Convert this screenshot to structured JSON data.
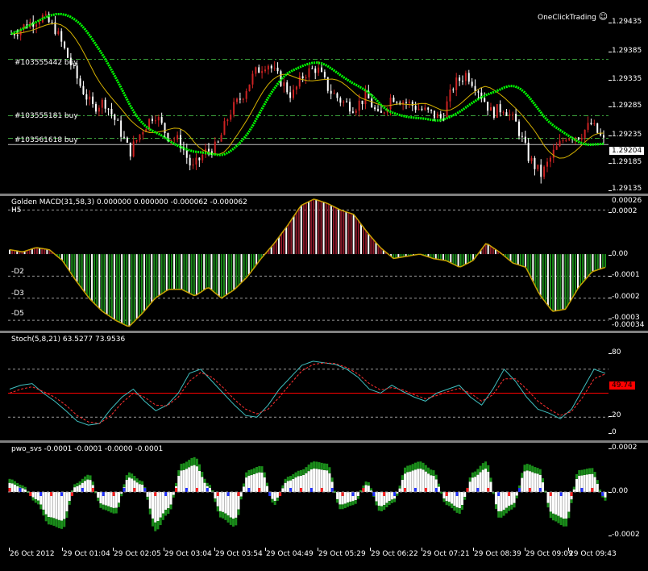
{
  "header": {
    "one_click_label": "OneClickTrading",
    "smile": "☺"
  },
  "colors": {
    "bg": "#000000",
    "bull": "#cc2222",
    "bear": "#ffffff",
    "ma_green": "#00ff00",
    "ma_gold": "#d4b000",
    "macd_red": "#8b1a2a",
    "macd_green": "#1a8c1a",
    "stoch_main": "#3fbfbf",
    "stoch_signal": "#ff3030",
    "pwo_green": "#1a8c1a",
    "pwo_white": "#ffffff",
    "pwo_red": "#ff2020",
    "pwo_blue": "#2030ff",
    "level_red": "#ff0000"
  },
  "order_lines": [
    {
      "label": "#103555442 buy",
      "price": 1.29355
    },
    {
      "label": "#103555181 buy",
      "price": 1.29255
    },
    {
      "label": "#103561618 buy",
      "price": 1.29215
    }
  ],
  "price_axis": {
    "ticks": [
      "1.29435",
      "1.29385",
      "1.29335",
      "1.29285",
      "1.29235",
      "1.29204",
      "1.29185",
      "1.29135"
    ],
    "current": "1.29204"
  },
  "macd": {
    "title": "Golden MACD(31,58,3) 0.000000 0.000000 -0.000062 -0.000062",
    "levels_left": [
      "H5",
      "-D2",
      "-D3",
      "-D5"
    ],
    "axis": [
      "0.00026",
      "0.0002",
      "0.00",
      "-0.0001",
      "-0.0002",
      "-0.0003",
      "-0.00034"
    ]
  },
  "stoch": {
    "title": "Stoch(5,8,21) 63.5277 73.9536",
    "axis": [
      "80",
      "20",
      "0"
    ],
    "current_tag": "49.74",
    "ylim": [
      0,
      100
    ]
  },
  "pwo": {
    "title": "pwo_svs -0.0001 -0.0001 -0.0000 -0.0001",
    "axis": [
      "0.0002",
      "0.00",
      "-0.0002"
    ]
  },
  "time_axis": [
    "26 Oct 2012",
    "29 Oct 01:04",
    "29 Oct 02:05",
    "29 Oct 03:04",
    "29 Oct 03:54",
    "29 Oct 04:49",
    "29 Oct 05:29",
    "29 Oct 06:22",
    "29 Oct 07:21",
    "29 Oct 08:39",
    "29 Oct 09:09",
    "29 Oct 09:43"
  ],
  "chart_data": [
    {
      "type": "candlestick",
      "title": "",
      "x_ticks": [
        "26 Oct 2012",
        "29 Oct 01:04",
        "29 Oct 02:05",
        "29 Oct 03:04",
        "29 Oct 03:54",
        "29 Oct 04:49",
        "29 Oct 05:29",
        "29 Oct 06:22",
        "29 Oct 07:21",
        "29 Oct 08:39",
        "29 Oct 09:09",
        "29 Oct 09:43"
      ],
      "ylim": [
        1.2912,
        1.2945
      ],
      "close_path": [
        [
          0,
          1.294
        ],
        [
          3,
          1.2942
        ],
        [
          5,
          1.2943
        ],
        [
          7,
          1.2941
        ],
        [
          9,
          1.2936
        ],
        [
          11,
          1.2931
        ],
        [
          13,
          1.2927
        ],
        [
          15,
          1.2928
        ],
        [
          17,
          1.2924
        ],
        [
          19,
          1.2919
        ],
        [
          21,
          1.2923
        ],
        [
          23,
          1.2926
        ],
        [
          25,
          1.2922
        ],
        [
          27,
          1.2921
        ],
        [
          29,
          1.2916
        ],
        [
          31,
          1.2919
        ],
        [
          33,
          1.292
        ],
        [
          35,
          1.2926
        ],
        [
          37,
          1.2929
        ],
        [
          39,
          1.2933
        ],
        [
          41,
          1.2935
        ],
        [
          43,
          1.2932
        ],
        [
          45,
          1.2929
        ],
        [
          47,
          1.2933
        ],
        [
          49,
          1.2934
        ],
        [
          51,
          1.293
        ],
        [
          53,
          1.2928
        ],
        [
          55,
          1.2927
        ],
        [
          57,
          1.2929
        ],
        [
          59,
          1.2925
        ],
        [
          61,
          1.2929
        ],
        [
          63,
          1.2928
        ],
        [
          65,
          1.2927
        ],
        [
          67,
          1.2926
        ],
        [
          69,
          1.2925
        ],
        [
          71,
          1.2931
        ],
        [
          73,
          1.2933
        ],
        [
          75,
          1.293
        ],
        [
          77,
          1.2926
        ],
        [
          79,
          1.2927
        ],
        [
          81,
          1.2924
        ],
        [
          83,
          1.2918
        ],
        [
          85,
          1.2915
        ],
        [
          87,
          1.2919
        ],
        [
          89,
          1.2922
        ],
        [
          91,
          1.2922
        ],
        [
          93,
          1.2924
        ],
        [
          95,
          1.2921
        ]
      ],
      "series": [
        {
          "name": "",
          "color": "#00ff00"
        },
        {
          "name": "",
          "color": "#d4b000"
        }
      ]
    },
    {
      "type": "bar",
      "title": "Golden MACD(31,58,3) 0.000000 0.000000 -0.000062 -0.000062",
      "ylim": [
        -0.00034,
        0.00026
      ],
      "values": [
        2e-05,
        1e-05,
        3e-05,
        2e-05,
        -3e-05,
        -0.00012,
        -0.0002,
        -0.00026,
        -0.0003,
        -0.00033,
        -0.00027,
        -0.0002,
        -0.00016,
        -0.00016,
        -0.00019,
        -0.00015,
        -0.0002,
        -0.00016,
        -0.0001,
        -2e-05,
        5e-05,
        0.00013,
        0.00022,
        0.00025,
        0.00023,
        0.0002,
        0.00018,
        0.0001,
        3e-05,
        -2e-05,
        -1e-05,
        0.0,
        -2e-05,
        -3e-05,
        -6e-05,
        -3e-05,
        5e-05,
        1e-05,
        -4e-05,
        -6e-05,
        -0.00018,
        -0.00026,
        -0.00025,
        -0.00015,
        -8e-05,
        -6e-05
      ]
    },
    {
      "type": "line",
      "title": "Stoch(5,8,21) 63.5277 73.9536",
      "ylim": [
        0,
        100
      ],
      "series": [
        {
          "name": "",
          "values": [
            55,
            60,
            62,
            50,
            40,
            28,
            15,
            10,
            12,
            30,
            45,
            55,
            40,
            28,
            35,
            50,
            75,
            80,
            65,
            50,
            35,
            22,
            20,
            35,
            55,
            70,
            85,
            90,
            88,
            86,
            80,
            70,
            55,
            50,
            60,
            52,
            45,
            40,
            50,
            55,
            60,
            45,
            35,
            55,
            80,
            65,
            45,
            30,
            25,
            18,
            30,
            55,
            80,
            75
          ]
        },
        {
          "name": "",
          "values": [
            50,
            55,
            58,
            52,
            45,
            35,
            22,
            14,
            12,
            22,
            38,
            50,
            45,
            35,
            34,
            45,
            65,
            76,
            70,
            57,
            42,
            30,
            24,
            30,
            45,
            62,
            78,
            86,
            88,
            87,
            82,
            74,
            62,
            54,
            57,
            54,
            48,
            43,
            47,
            52,
            56,
            50,
            40,
            48,
            68,
            68,
            55,
            40,
            30,
            22,
            27,
            45,
            68,
            74
          ]
        }
      ]
    },
    {
      "type": "bar",
      "title": "pwo_svs -0.0001 -0.0001 -0.0000 -0.0001",
      "ylim": [
        -0.0002,
        0.0002
      ],
      "values": [
        6e-05,
        3e-05,
        -5e-05,
        -0.00015,
        -0.00017,
        4e-05,
        8e-05,
        -8e-05,
        -0.0001,
        9e-05,
        5e-05,
        -0.00018,
        -0.0001,
        0.00013,
        0.00016,
        4e-05,
        -0.00012,
        -0.00016,
        0.0001,
        0.00012,
        -6e-05,
        7e-05,
        0.0001,
        0.00014,
        0.00013,
        -8e-05,
        -6e-05,
        5e-05,
        -9e-05,
        -5e-05,
        0.00012,
        0.00014,
        0.0001,
        -6e-05,
        -0.0001,
        9e-05,
        0.00014,
        -0.00012,
        -8e-05,
        0.00013,
        0.00011,
        -0.00013,
        -0.00016,
        0.0001,
        0.00011,
        -4e-05
      ]
    }
  ]
}
